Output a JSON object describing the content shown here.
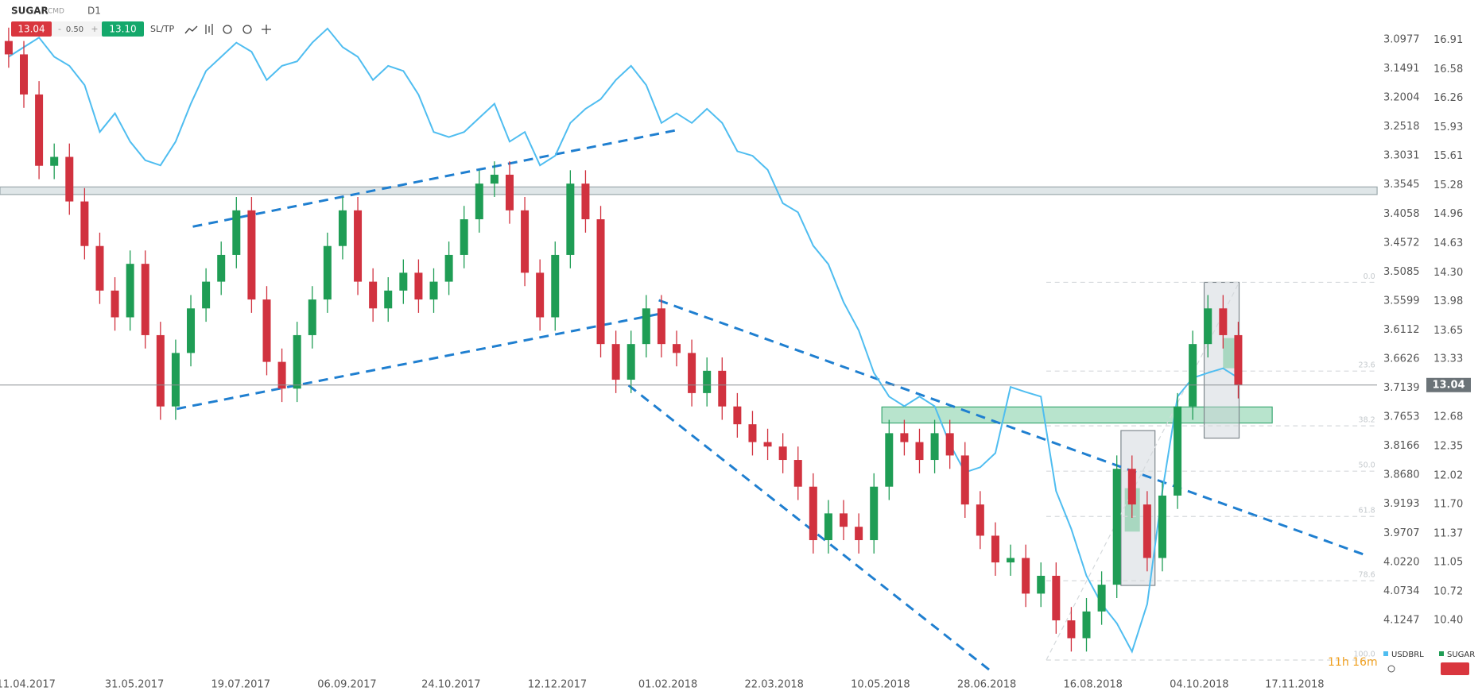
{
  "toolbar": {
    "symbol": "SUGAR",
    "market": "CMD",
    "interval": "D1",
    "sell": "13.04",
    "spread_minus": "-",
    "spread": "0.50",
    "spread_plus": "+",
    "buy": "13.10",
    "sltp": "SL/TP"
  },
  "fibonacci": [
    "0.0",
    "23.6",
    "38.2",
    "50.0",
    "61.8",
    "78.6",
    "100.0"
  ],
  "timer": "11h 16m",
  "chart_data": {
    "type": "candlestick",
    "x": [
      "03.04.2017",
      "10.04.2017",
      "17.04.2017",
      "24.04.2017",
      "01.05.2017",
      "08.05.2017",
      "15.05.2017",
      "22.05.2017",
      "29.05.2017",
      "05.06.2017",
      "12.06.2017",
      "19.06.2017",
      "26.06.2017",
      "03.07.2017",
      "10.07.2017",
      "17.07.2017",
      "24.07.2017",
      "31.07.2017",
      "07.08.2017",
      "14.08.2017",
      "21.08.2017",
      "28.08.2017",
      "04.09.2017",
      "11.09.2017",
      "18.09.2017",
      "25.09.2017",
      "02.10.2017",
      "09.10.2017",
      "16.10.2017",
      "23.10.2017",
      "30.10.2017",
      "06.11.2017",
      "13.11.2017",
      "20.11.2017",
      "27.11.2017",
      "04.12.2017",
      "11.12.2017",
      "18.12.2017",
      "25.12.2017",
      "01.01.2018",
      "08.01.2018",
      "15.01.2018",
      "22.01.2018",
      "29.01.2018",
      "05.02.2018",
      "12.02.2018",
      "19.02.2018",
      "26.02.2018",
      "05.03.2018",
      "12.03.2018",
      "19.03.2018",
      "26.03.2018",
      "02.04.2018",
      "09.04.2018",
      "16.04.2018",
      "23.04.2018",
      "30.04.2018",
      "07.05.2018",
      "14.05.2018",
      "21.05.2018",
      "28.05.2018",
      "04.06.2018",
      "11.06.2018",
      "18.06.2018",
      "25.06.2018",
      "02.07.2018",
      "09.07.2018",
      "16.07.2018",
      "23.07.2018",
      "30.07.2018",
      "06.08.2018",
      "13.08.2018",
      "20.08.2018",
      "27.08.2018",
      "03.09.2018",
      "10.09.2018",
      "17.09.2018",
      "24.09.2018",
      "01.10.2018",
      "08.10.2018",
      "15.10.2018",
      "22.10.2018"
    ],
    "series": [
      {
        "name": "SUGAR",
        "up_color": "#1f9d55",
        "down_color": "#d1323f",
        "open": [
          16.9,
          16.75,
          16.3,
          15.5,
          15.6,
          15.1,
          14.6,
          14.1,
          13.8,
          14.4,
          13.6,
          12.8,
          13.4,
          13.9,
          14.2,
          14.5,
          15.0,
          14.0,
          13.3,
          13.0,
          13.6,
          14.0,
          14.6,
          15.0,
          14.2,
          13.9,
          14.1,
          14.3,
          14.0,
          14.2,
          14.5,
          14.9,
          15.3,
          15.4,
          15.0,
          14.3,
          13.8,
          14.5,
          15.3,
          14.9,
          13.5,
          13.1,
          13.5,
          13.9,
          13.5,
          13.4,
          12.95,
          13.2,
          12.8,
          12.6,
          12.4,
          12.35,
          12.2,
          11.9,
          11.3,
          11.6,
          11.45,
          11.3,
          11.9,
          12.5,
          12.4,
          12.2,
          12.5,
          12.25,
          11.7,
          11.35,
          11.05,
          11.1,
          10.7,
          10.9,
          10.4,
          10.2,
          10.5,
          10.8,
          12.1,
          11.7,
          11.1,
          11.8,
          12.8,
          13.5,
          13.9,
          13.6
        ],
        "high": [
          17.05,
          16.9,
          16.45,
          15.75,
          15.75,
          15.25,
          14.75,
          14.25,
          14.55,
          14.55,
          13.75,
          13.55,
          14.05,
          14.35,
          14.65,
          15.15,
          15.15,
          14.15,
          13.45,
          13.75,
          14.15,
          14.75,
          15.15,
          15.15,
          14.35,
          14.25,
          14.45,
          14.45,
          14.35,
          14.65,
          15.05,
          15.45,
          15.55,
          15.55,
          15.15,
          14.45,
          14.65,
          15.45,
          15.45,
          15.05,
          13.65,
          13.65,
          14.05,
          14.05,
          13.65,
          13.55,
          13.35,
          13.35,
          12.95,
          12.75,
          12.55,
          12.5,
          12.35,
          12.05,
          11.75,
          11.75,
          11.6,
          12.05,
          12.65,
          12.65,
          12.55,
          12.65,
          12.65,
          12.4,
          11.85,
          11.5,
          11.25,
          11.25,
          11.05,
          11.05,
          10.55,
          10.65,
          10.95,
          12.25,
          12.25,
          11.85,
          11.95,
          12.95,
          13.65,
          14.05,
          14.05,
          13.75
        ],
        "low": [
          16.6,
          16.15,
          15.35,
          15.35,
          14.95,
          14.45,
          13.95,
          13.65,
          13.65,
          13.45,
          12.65,
          12.65,
          13.25,
          13.75,
          14.05,
          14.35,
          13.85,
          13.15,
          12.85,
          12.85,
          13.45,
          13.85,
          14.45,
          14.05,
          13.75,
          13.75,
          13.95,
          13.85,
          13.85,
          14.05,
          14.35,
          14.75,
          15.15,
          14.85,
          14.15,
          13.65,
          13.65,
          14.35,
          14.75,
          13.35,
          12.95,
          12.95,
          13.35,
          13.35,
          13.25,
          12.8,
          12.8,
          12.65,
          12.45,
          12.25,
          12.2,
          12.05,
          11.75,
          11.15,
          11.15,
          11.3,
          11.15,
          11.15,
          11.75,
          12.25,
          12.05,
          12.05,
          12.1,
          11.55,
          11.2,
          10.9,
          10.9,
          10.55,
          10.55,
          10.25,
          10.05,
          10.05,
          10.35,
          10.65,
          11.55,
          10.95,
          10.95,
          11.65,
          12.65,
          13.35,
          13.45,
          12.89
        ],
        "close": [
          16.75,
          16.3,
          15.5,
          15.6,
          15.1,
          14.6,
          14.1,
          13.8,
          14.4,
          13.6,
          12.8,
          13.4,
          13.9,
          14.2,
          14.5,
          15.0,
          14.0,
          13.3,
          13.0,
          13.6,
          14.0,
          14.6,
          15.0,
          14.2,
          13.9,
          14.1,
          14.3,
          14.0,
          14.2,
          14.5,
          14.9,
          15.3,
          15.4,
          15.0,
          14.3,
          13.8,
          14.5,
          15.3,
          14.9,
          13.5,
          13.1,
          13.5,
          13.9,
          13.5,
          13.4,
          12.95,
          13.2,
          12.8,
          12.6,
          12.4,
          12.35,
          12.2,
          11.9,
          11.3,
          11.6,
          11.45,
          11.3,
          11.9,
          12.5,
          12.4,
          12.2,
          12.5,
          12.25,
          11.7,
          11.35,
          11.05,
          11.1,
          10.7,
          10.9,
          10.4,
          10.2,
          10.5,
          10.8,
          12.1,
          11.7,
          11.1,
          11.8,
          12.8,
          13.5,
          13.9,
          13.6,
          13.04
        ]
      },
      {
        "name": "USDBRL",
        "type": "line",
        "axis": "y2",
        "color": "#4fbdf0",
        "values": [
          3.128,
          3.111,
          3.094,
          3.128,
          3.144,
          3.178,
          3.261,
          3.228,
          3.278,
          3.311,
          3.32,
          3.278,
          3.211,
          3.153,
          3.128,
          3.103,
          3.119,
          3.169,
          3.144,
          3.136,
          3.103,
          3.078,
          3.111,
          3.128,
          3.169,
          3.144,
          3.153,
          3.195,
          3.261,
          3.27,
          3.261,
          3.236,
          3.211,
          3.278,
          3.261,
          3.32,
          3.303,
          3.245,
          3.22,
          3.203,
          3.169,
          3.144,
          3.178,
          3.245,
          3.228,
          3.245,
          3.22,
          3.245,
          3.295,
          3.303,
          3.328,
          3.387,
          3.403,
          3.462,
          3.495,
          3.562,
          3.612,
          3.687,
          3.729,
          3.746,
          3.729,
          3.746,
          3.813,
          3.863,
          3.854,
          3.829,
          3.712,
          3.721,
          3.729,
          3.896,
          3.963,
          4.046,
          4.096,
          4.13,
          4.18,
          4.096,
          3.896,
          3.729,
          3.696,
          3.687,
          3.679,
          3.696
        ]
      }
    ],
    "current_price": 13.04,
    "xlim": [
      "30.03.2017",
      "25.12.2018"
    ],
    "xticks": [
      "11.04.2017",
      "31.05.2017",
      "19.07.2017",
      "06.09.2017",
      "24.10.2017",
      "12.12.2017",
      "01.02.2018",
      "22.03.2018",
      "10.05.2018",
      "28.06.2018",
      "16.08.2018",
      "04.10.2018",
      "17.11.2018"
    ],
    "ylim": [
      9.83,
      17.36
    ],
    "yticks": [
      16.91,
      16.58,
      16.26,
      15.93,
      15.61,
      15.28,
      14.96,
      14.63,
      {
        "value": 14.3,
        "label": "14.30"
      },
      13.98,
      13.65,
      13.33,
      12.68,
      12.35,
      12.02,
      {
        "value": 11.7,
        "label": "11.70"
      },
      11.37,
      11.05,
      10.72,
      {
        "value": 10.4,
        "label": "10.40"
      }
    ],
    "y2lim": [
      4.2147,
      3.0275
    ],
    "y2ticks": [
      3.0977,
      3.1491,
      3.2004,
      3.2518,
      3.3031,
      3.3545,
      3.4058,
      3.4572,
      3.5085,
      3.5599,
      3.6112,
      3.6626,
      3.7139,
      3.7653,
      3.8166,
      {
        "value": 3.868,
        "label": "3.8680"
      },
      3.9193,
      3.9707,
      {
        "value": 4.022,
        "label": "4.0220"
      },
      4.0734,
      4.1247
    ],
    "grid": false
  }
}
